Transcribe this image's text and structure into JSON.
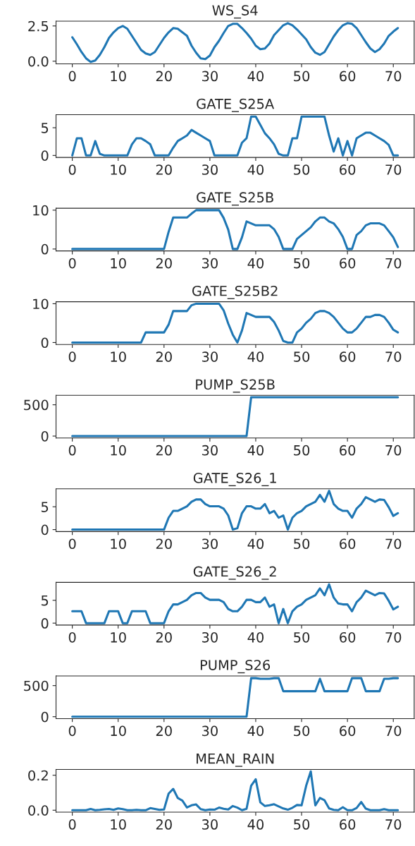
{
  "chart_data": [
    {
      "type": "line",
      "title": "WS_S4",
      "color": "#1f77b4",
      "x": [
        0,
        1,
        2,
        3,
        4,
        5,
        6,
        7,
        8,
        9,
        10,
        11,
        12,
        13,
        14,
        15,
        16,
        17,
        18,
        19,
        20,
        21,
        22,
        23,
        24,
        25,
        26,
        27,
        28,
        29,
        30,
        31,
        32,
        33,
        34,
        35,
        36,
        37,
        38,
        39,
        40,
        41,
        42,
        43,
        44,
        45,
        46,
        47,
        48,
        49,
        50,
        51,
        52,
        53,
        54,
        55,
        56,
        57,
        58,
        59,
        60,
        61,
        62,
        63,
        64,
        65,
        66,
        67,
        68,
        69,
        70,
        71
      ],
      "values": [
        1.7,
        1.2,
        0.65,
        0.2,
        -0.05,
        0.05,
        0.45,
        1.0,
        1.65,
        2.05,
        2.35,
        2.5,
        2.3,
        1.8,
        1.3,
        0.8,
        0.55,
        0.45,
        0.65,
        1.15,
        1.65,
        2.05,
        2.35,
        2.3,
        2.05,
        1.8,
        1.1,
        0.6,
        0.2,
        0.15,
        0.4,
        1.0,
        1.45,
        2.0,
        2.5,
        2.65,
        2.65,
        2.35,
        2.0,
        1.6,
        1.1,
        0.85,
        0.9,
        1.25,
        1.85,
        2.2,
        2.55,
        2.7,
        2.55,
        2.25,
        1.9,
        1.55,
        1.0,
        0.6,
        0.45,
        0.65,
        1.2,
        1.75,
        2.2,
        2.55,
        2.7,
        2.65,
        2.35,
        1.85,
        1.35,
        0.9,
        0.65,
        0.85,
        1.25,
        1.8,
        2.1,
        2.35
      ],
      "xlim": [
        -3.55,
        74.55
      ],
      "xticks": [
        0,
        10,
        20,
        30,
        40,
        50,
        60,
        70
      ],
      "ylim": [
        -0.19,
        2.84
      ],
      "yticks": [
        {
          "value": 0,
          "label": "0.0"
        },
        2.5
      ]
    },
    {
      "type": "line",
      "title": "GATE_S25A",
      "color": "#1f77b4",
      "x": [
        0,
        1,
        2,
        3,
        4,
        5,
        6,
        7,
        8,
        9,
        10,
        11,
        12,
        13,
        14,
        15,
        16,
        17,
        18,
        19,
        20,
        21,
        22,
        23,
        24,
        25,
        26,
        27,
        28,
        29,
        30,
        31,
        32,
        33,
        34,
        35,
        36,
        37,
        38,
        39,
        40,
        41,
        42,
        43,
        44,
        45,
        46,
        47,
        48,
        49,
        50,
        51,
        52,
        53,
        54,
        55,
        56,
        57,
        58,
        59,
        60,
        61,
        62,
        63,
        64,
        65,
        66,
        67,
        68,
        69,
        70,
        71
      ],
      "values": [
        0,
        3.1,
        3.1,
        0,
        0,
        2.6,
        0.3,
        0,
        0,
        0,
        0,
        0,
        0,
        2.0,
        3.1,
        3.1,
        2.6,
        2.0,
        0,
        0,
        0,
        0,
        1.4,
        2.6,
        3.1,
        3.6,
        4.6,
        4.1,
        3.6,
        3.1,
        2.6,
        0,
        0,
        0,
        0,
        0,
        0,
        2.3,
        3.1,
        7.0,
        7.0,
        5.5,
        4.0,
        3.1,
        2.0,
        0.3,
        0,
        0,
        3.1,
        3.1,
        7.0,
        7.0,
        7.0,
        7.0,
        7.0,
        7.0,
        3.6,
        0.7,
        3.1,
        0,
        2.6,
        0,
        3.1,
        3.6,
        4.1,
        4.1,
        3.6,
        3.1,
        2.6,
        1.9,
        0,
        0
      ],
      "xlim": [
        -3.55,
        74.55
      ],
      "xticks": [
        0,
        10,
        20,
        30,
        40,
        50,
        60,
        70
      ],
      "ylim": [
        -0.35,
        7.35
      ],
      "yticks": [
        0,
        5
      ]
    },
    {
      "type": "line",
      "title": "GATE_S25B",
      "color": "#1f77b4",
      "x": [
        0,
        1,
        2,
        3,
        4,
        5,
        6,
        7,
        8,
        9,
        10,
        11,
        12,
        13,
        14,
        15,
        16,
        17,
        18,
        19,
        20,
        21,
        22,
        23,
        24,
        25,
        26,
        27,
        28,
        29,
        30,
        31,
        32,
        33,
        34,
        35,
        36,
        37,
        38,
        39,
        40,
        41,
        42,
        43,
        44,
        45,
        46,
        47,
        48,
        49,
        50,
        51,
        52,
        53,
        54,
        55,
        56,
        57,
        58,
        59,
        60,
        61,
        62,
        63,
        64,
        65,
        66,
        67,
        68,
        69,
        70,
        71
      ],
      "values": [
        0,
        0,
        0,
        0,
        0,
        0,
        0,
        0,
        0,
        0,
        0,
        0,
        0,
        0,
        0,
        0,
        0,
        0,
        0,
        0,
        0,
        4.4,
        8.1,
        8.1,
        8.1,
        8.1,
        9.1,
        10,
        10,
        10,
        10,
        10,
        10,
        8,
        5,
        0,
        0,
        3,
        7.1,
        6.6,
        6.1,
        6.1,
        6.1,
        6.1,
        5.1,
        3.1,
        0,
        0,
        0,
        2.6,
        3.6,
        4.6,
        5.6,
        7.1,
        8.1,
        8.1,
        7.1,
        6.6,
        5.1,
        3.1,
        0,
        0,
        3.6,
        4.6,
        6.1,
        6.6,
        6.6,
        6.6,
        6.1,
        4.6,
        3.0,
        0.5
      ],
      "xlim": [
        -3.55,
        74.55
      ],
      "xticks": [
        0,
        10,
        20,
        30,
        40,
        50,
        60,
        70
      ],
      "ylim": [
        -0.5,
        10.5
      ],
      "yticks": [
        0,
        10
      ]
    },
    {
      "type": "line",
      "title": "GATE_S25B2",
      "color": "#1f77b4",
      "x": [
        0,
        1,
        2,
        3,
        4,
        5,
        6,
        7,
        8,
        9,
        10,
        11,
        12,
        13,
        14,
        15,
        16,
        17,
        18,
        19,
        20,
        21,
        22,
        23,
        24,
        25,
        26,
        27,
        28,
        29,
        30,
        31,
        32,
        33,
        34,
        35,
        36,
        37,
        38,
        39,
        40,
        41,
        42,
        43,
        44,
        45,
        46,
        47,
        48,
        49,
        50,
        51,
        52,
        53,
        54,
        55,
        56,
        57,
        58,
        59,
        60,
        61,
        62,
        63,
        64,
        65,
        66,
        67,
        68,
        69,
        70,
        71
      ],
      "values": [
        0,
        0,
        0,
        0,
        0,
        0,
        0,
        0,
        0,
        0,
        0,
        0,
        0,
        0,
        0,
        0,
        2.6,
        2.6,
        2.6,
        2.6,
        2.6,
        4.6,
        8.1,
        8.1,
        8.1,
        8.1,
        9.6,
        10,
        10,
        10,
        10,
        10,
        10,
        8.3,
        4.9,
        2.0,
        0,
        3.1,
        7.6,
        7.1,
        6.6,
        6.6,
        6.6,
        6.6,
        5.3,
        3.1,
        0.4,
        0,
        0,
        2.6,
        3.6,
        5.1,
        6.1,
        7.6,
        8.1,
        8.1,
        7.6,
        6.6,
        5.1,
        3.6,
        2.6,
        2.6,
        3.6,
        5.1,
        6.6,
        6.6,
        7.1,
        7.1,
        6.6,
        5.1,
        3.3,
        2.6
      ],
      "xlim": [
        -3.55,
        74.55
      ],
      "xticks": [
        0,
        10,
        20,
        30,
        40,
        50,
        60,
        70
      ],
      "ylim": [
        -0.5,
        10.5
      ],
      "yticks": [
        0,
        10
      ]
    },
    {
      "type": "line",
      "title": "PUMP_S25B",
      "color": "#1f77b4",
      "x": [
        0,
        1,
        2,
        3,
        4,
        5,
        6,
        7,
        8,
        9,
        10,
        11,
        12,
        13,
        14,
        15,
        16,
        17,
        18,
        19,
        20,
        21,
        22,
        23,
        24,
        25,
        26,
        27,
        28,
        29,
        30,
        31,
        32,
        33,
        34,
        35,
        36,
        37,
        38,
        39,
        40,
        41,
        42,
        43,
        44,
        45,
        46,
        47,
        48,
        49,
        50,
        51,
        52,
        53,
        54,
        55,
        56,
        57,
        58,
        59,
        60,
        61,
        62,
        63,
        64,
        65,
        66,
        67,
        68,
        69,
        70,
        71
      ],
      "values": [
        0,
        0,
        0,
        0,
        0,
        0,
        0,
        0,
        0,
        0,
        0,
        0,
        0,
        0,
        0,
        0,
        0,
        0,
        0,
        0,
        0,
        0,
        0,
        0,
        0,
        0,
        0,
        0,
        0,
        0,
        0,
        0,
        0,
        0,
        0,
        0,
        0,
        0,
        0,
        620,
        620,
        620,
        620,
        620,
        620,
        620,
        620,
        620,
        620,
        620,
        620,
        620,
        620,
        620,
        620,
        620,
        620,
        620,
        620,
        620,
        620,
        620,
        620,
        620,
        620,
        620,
        620,
        620,
        620,
        620,
        620,
        620
      ],
      "xlim": [
        -3.55,
        74.55
      ],
      "xticks": [
        0,
        10,
        20,
        30,
        40,
        50,
        60,
        70
      ],
      "ylim": [
        -31,
        651
      ],
      "yticks": [
        0,
        500
      ]
    },
    {
      "type": "line",
      "title": "GATE_S26_1",
      "color": "#1f77b4",
      "x": [
        0,
        1,
        2,
        3,
        4,
        5,
        6,
        7,
        8,
        9,
        10,
        11,
        12,
        13,
        14,
        15,
        16,
        17,
        18,
        19,
        20,
        21,
        22,
        23,
        24,
        25,
        26,
        27,
        28,
        29,
        30,
        31,
        32,
        33,
        34,
        35,
        36,
        37,
        38,
        39,
        40,
        41,
        42,
        43,
        44,
        45,
        46,
        47,
        48,
        49,
        50,
        51,
        52,
        53,
        54,
        55,
        56,
        57,
        58,
        59,
        60,
        61,
        62,
        63,
        64,
        65,
        66,
        67,
        68,
        69,
        70,
        71
      ],
      "values": [
        0,
        0,
        0,
        0,
        0,
        0,
        0,
        0,
        0,
        0,
        0,
        0,
        0,
        0,
        0,
        0,
        0,
        0,
        0,
        0,
        0,
        2.6,
        4.1,
        4.1,
        4.6,
        5.1,
        6.1,
        6.6,
        6.6,
        5.6,
        5.1,
        5.1,
        5.1,
        4.6,
        3.1,
        0,
        0.3,
        3.6,
        5.1,
        5.1,
        4.6,
        4.6,
        5.6,
        3.6,
        4.1,
        2.6,
        3.1,
        0,
        2.6,
        3.6,
        4.1,
        5.1,
        5.6,
        6.1,
        7.6,
        6.1,
        8.5,
        5.6,
        4.6,
        4.1,
        4.1,
        2.6,
        4.6,
        5.6,
        7.1,
        6.6,
        6.1,
        6.6,
        6.5,
        4.9,
        3.0,
        3.6
      ],
      "xlim": [
        -3.55,
        74.55
      ],
      "xticks": [
        0,
        10,
        20,
        30,
        40,
        50,
        60,
        70
      ],
      "ylim": [
        -0.425,
        8.925
      ],
      "yticks": [
        0,
        5
      ]
    },
    {
      "type": "line",
      "title": "GATE_S26_2",
      "color": "#1f77b4",
      "x": [
        0,
        1,
        2,
        3,
        4,
        5,
        6,
        7,
        8,
        9,
        10,
        11,
        12,
        13,
        14,
        15,
        16,
        17,
        18,
        19,
        20,
        21,
        22,
        23,
        24,
        25,
        26,
        27,
        28,
        29,
        30,
        31,
        32,
        33,
        34,
        35,
        36,
        37,
        38,
        39,
        40,
        41,
        42,
        43,
        44,
        45,
        46,
        47,
        48,
        49,
        50,
        51,
        52,
        53,
        54,
        55,
        56,
        57,
        58,
        59,
        60,
        61,
        62,
        63,
        64,
        65,
        66,
        67,
        68,
        69,
        70,
        71
      ],
      "values": [
        2.6,
        2.6,
        2.6,
        0,
        0,
        0,
        0,
        0,
        2.6,
        2.6,
        2.6,
        0,
        0,
        2.6,
        2.6,
        2.6,
        2.6,
        0,
        0,
        0,
        0,
        2.6,
        4.1,
        4.1,
        4.6,
        5.1,
        6.1,
        6.6,
        6.6,
        5.6,
        5.1,
        5.1,
        5.1,
        4.6,
        3.1,
        2.6,
        2.6,
        3.6,
        5.1,
        5.1,
        4.6,
        4.6,
        5.6,
        3.6,
        4.1,
        0,
        3.1,
        0,
        2.6,
        3.6,
        4.1,
        5.1,
        5.6,
        6.1,
        7.6,
        6.1,
        8.5,
        5.6,
        4.3,
        4.1,
        4.1,
        2.6,
        4.6,
        5.6,
        7.1,
        6.6,
        6.1,
        6.6,
        6.5,
        4.9,
        3.0,
        3.6
      ],
      "xlim": [
        -3.55,
        74.55
      ],
      "xticks": [
        0,
        10,
        20,
        30,
        40,
        50,
        60,
        70
      ],
      "ylim": [
        -0.425,
        8.925
      ],
      "yticks": [
        0,
        5
      ]
    },
    {
      "type": "line",
      "title": "PUMP_S26",
      "color": "#1f77b4",
      "x": [
        0,
        1,
        2,
        3,
        4,
        5,
        6,
        7,
        8,
        9,
        10,
        11,
        12,
        13,
        14,
        15,
        16,
        17,
        18,
        19,
        20,
        21,
        22,
        23,
        24,
        25,
        26,
        27,
        28,
        29,
        30,
        31,
        32,
        33,
        34,
        35,
        36,
        37,
        38,
        39,
        40,
        41,
        42,
        43,
        44,
        45,
        46,
        47,
        48,
        49,
        50,
        51,
        52,
        53,
        54,
        55,
        56,
        57,
        58,
        59,
        60,
        61,
        62,
        63,
        64,
        65,
        66,
        67,
        68,
        69,
        70,
        71
      ],
      "values": [
        0,
        0,
        0,
        0,
        0,
        0,
        0,
        0,
        0,
        0,
        0,
        0,
        0,
        0,
        0,
        0,
        0,
        0,
        0,
        0,
        0,
        0,
        0,
        0,
        0,
        0,
        0,
        0,
        0,
        0,
        0,
        0,
        0,
        0,
        0,
        0,
        0,
        0,
        0,
        620,
        620,
        610,
        610,
        610,
        620,
        620,
        410,
        410,
        410,
        410,
        410,
        410,
        410,
        410,
        610,
        410,
        410,
        410,
        410,
        410,
        410,
        620,
        620,
        620,
        410,
        410,
        410,
        410,
        610,
        610,
        620,
        620
      ],
      "xlim": [
        -3.55,
        74.55
      ],
      "xticks": [
        0,
        10,
        20,
        30,
        40,
        50,
        60,
        70
      ],
      "ylim": [
        -31,
        656
      ],
      "yticks": [
        0,
        500
      ]
    },
    {
      "type": "line",
      "title": "MEAN_RAIN",
      "color": "#1f77b4",
      "x": [
        0,
        1,
        2,
        3,
        4,
        5,
        6,
        7,
        8,
        9,
        10,
        11,
        12,
        13,
        14,
        15,
        16,
        17,
        18,
        19,
        20,
        21,
        22,
        23,
        24,
        25,
        26,
        27,
        28,
        29,
        30,
        31,
        32,
        33,
        34,
        35,
        36,
        37,
        38,
        39,
        40,
        41,
        42,
        43,
        44,
        45,
        46,
        47,
        48,
        49,
        50,
        51,
        52,
        53,
        54,
        55,
        56,
        57,
        58,
        59,
        60,
        61,
        62,
        63,
        64,
        65,
        66,
        67,
        68,
        69,
        70,
        71
      ],
      "values": [
        0,
        0,
        0,
        0,
        0.007,
        0,
        0.002,
        0.005,
        0.007,
        0.002,
        0.01,
        0.006,
        0,
        0,
        0.002,
        0,
        0,
        0.012,
        0.007,
        0.002,
        0.004,
        0.095,
        0.122,
        0.07,
        0.055,
        0.016,
        0.028,
        0.033,
        0.006,
        0,
        0.004,
        0.003,
        0.015,
        0.008,
        0.004,
        0.024,
        0.015,
        0,
        0.008,
        0.14,
        0.177,
        0.045,
        0.024,
        0.028,
        0.034,
        0.022,
        0.01,
        0.003,
        0.014,
        0.03,
        0.028,
        0.14,
        0.222,
        0.028,
        0.07,
        0.057,
        0.01,
        0.002,
        0,
        0.017,
        0,
        0,
        0.013,
        0.047,
        0.009,
        0,
        0,
        0,
        0.006,
        0,
        0,
        0
      ],
      "xlim": [
        -3.55,
        74.55
      ],
      "xticks": [
        0,
        10,
        20,
        30,
        40,
        50,
        60,
        70
      ],
      "ylim": [
        -0.0111,
        0.2331
      ],
      "yticks": [
        {
          "value": 0,
          "label": "0.0"
        },
        0.2
      ]
    }
  ]
}
